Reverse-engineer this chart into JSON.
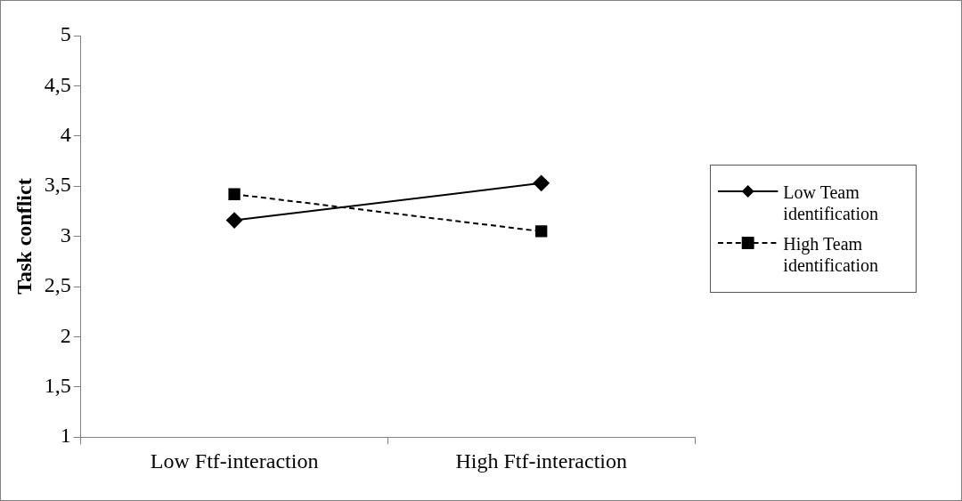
{
  "chart_data": {
    "type": "line",
    "ylabel": "Task conflict",
    "categories": [
      "Low Ftf-interaction",
      "High Ftf-interaction"
    ],
    "series": [
      {
        "name": "Low Team identification",
        "color": "#000000",
        "values": [
          3.16,
          3.53
        ],
        "marker": "diamond",
        "line_style": "solid"
      },
      {
        "name": "High Team identification",
        "color": "#000000",
        "values": [
          3.42,
          3.05
        ],
        "marker": "square",
        "line_style": "dashed"
      }
    ],
    "ylim": [
      1,
      5
    ],
    "yticks": [
      1,
      {
        "value": 1.5,
        "label": "1,5"
      },
      2,
      {
        "value": 2.5,
        "label": "2,5"
      },
      3,
      {
        "value": 3.5,
        "label": "3,5"
      },
      4,
      {
        "value": 4.5,
        "label": "4,5"
      },
      5
    ],
    "grid": false,
    "legend": "right"
  }
}
